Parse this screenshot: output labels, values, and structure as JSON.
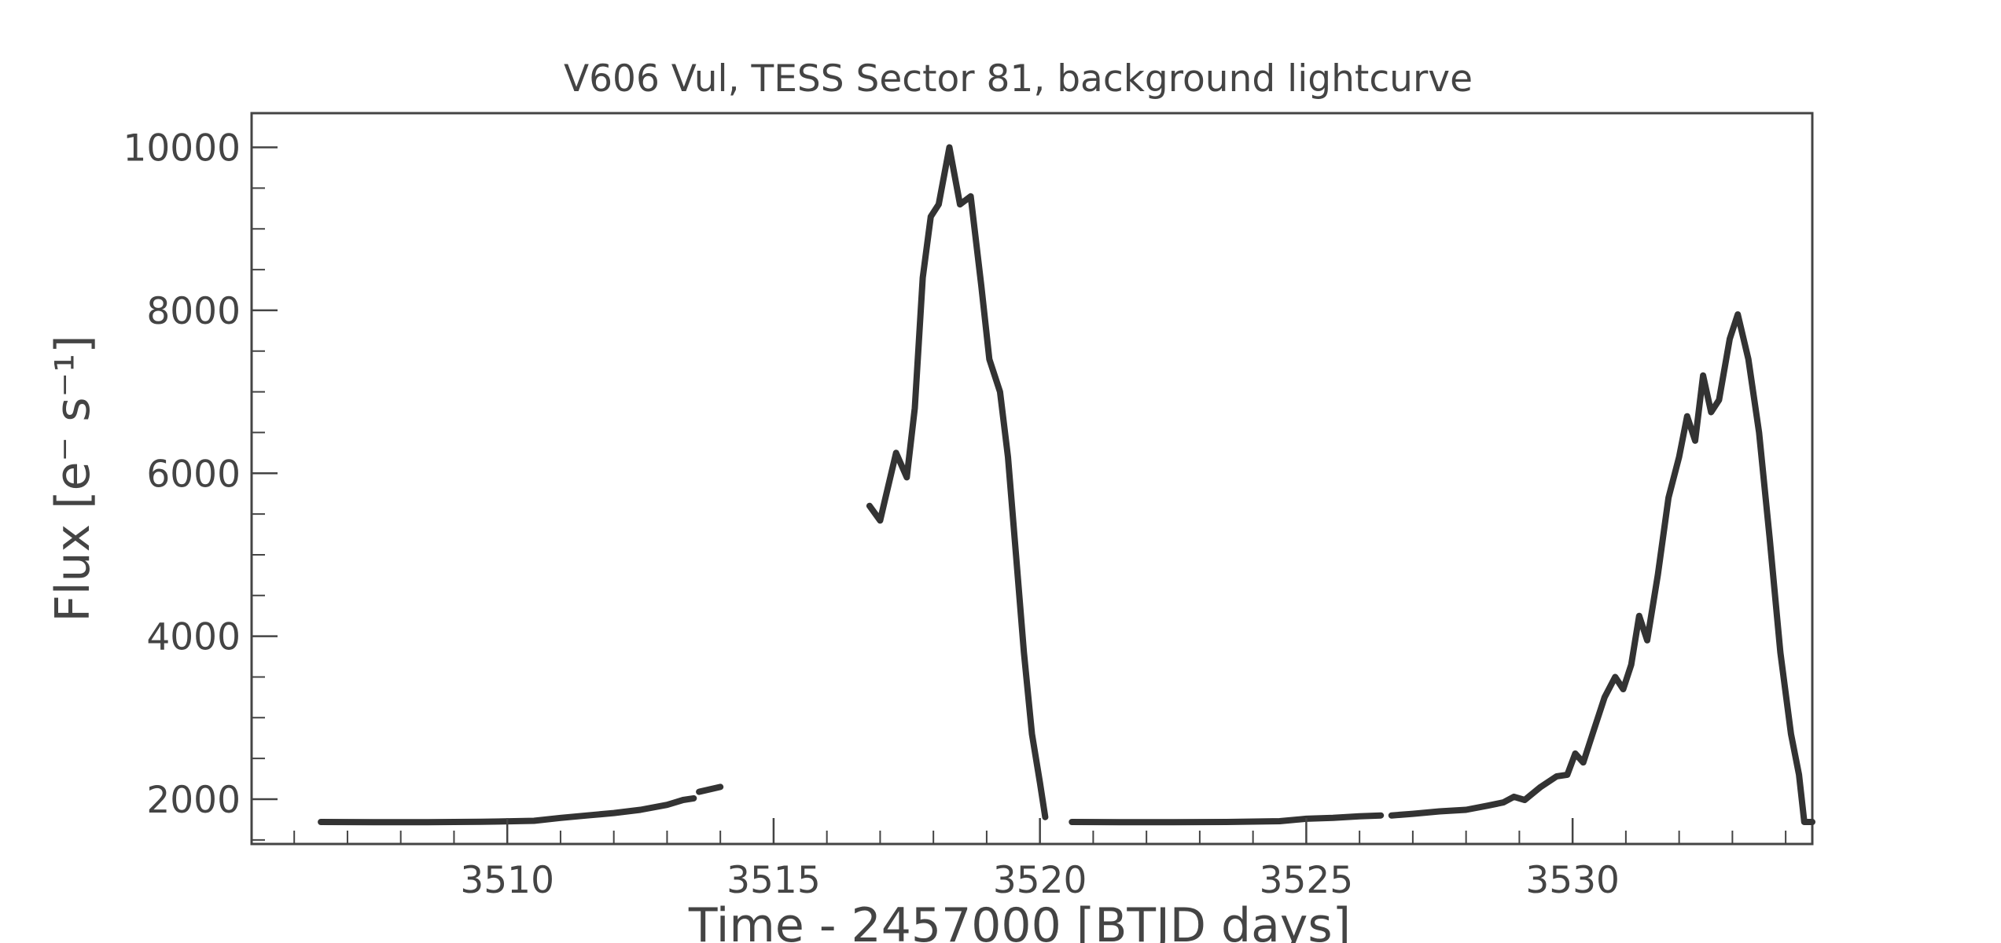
{
  "chart_data": {
    "type": "line",
    "title": "V606 Vul, TESS Sector 81, background lightcurve",
    "xlabel": "Time - 2457000 [BTJD days]",
    "ylabel": "Flux [e⁻ s⁻¹]",
    "xlim": [
      3505.2,
      3534.5
    ],
    "ylim": [
      1450,
      10420
    ],
    "xticks": [
      3510,
      3515,
      3520,
      3525,
      3530
    ],
    "xtick_labels": [
      "3510",
      "3515",
      "3520",
      "3525",
      "3530"
    ],
    "yticks": [
      2000,
      4000,
      6000,
      8000,
      10000
    ],
    "ytick_labels": [
      "2000",
      "4000",
      "6000",
      "8000",
      "10000"
    ],
    "grid": false,
    "legend": "none",
    "line_color": "#333333",
    "series": [
      {
        "segments": [
          [
            [
              3506.5,
              1720
            ],
            [
              3507.5,
              1718
            ],
            [
              3508.5,
              1718
            ],
            [
              3509.5,
              1722
            ],
            [
              3510.5,
              1735
            ],
            [
              3511.0,
              1770
            ],
            [
              3511.5,
              1800
            ],
            [
              3512.0,
              1830
            ],
            [
              3512.5,
              1870
            ],
            [
              3513.0,
              1930
            ],
            [
              3513.3,
              1990
            ],
            [
              3513.5,
              2010
            ]
          ],
          [
            [
              3513.6,
              2090
            ],
            [
              3514.0,
              2150
            ]
          ],
          [
            [
              3516.8,
              5600
            ],
            [
              3517.0,
              5420
            ],
            [
              3517.1,
              5700
            ],
            [
              3517.3,
              6250
            ],
            [
              3517.5,
              5950
            ],
            [
              3517.65,
              6800
            ],
            [
              3517.8,
              8400
            ],
            [
              3517.95,
              9150
            ],
            [
              3518.1,
              9300
            ],
            [
              3518.3,
              10000
            ],
            [
              3518.5,
              9300
            ],
            [
              3518.7,
              9400
            ],
            [
              3518.9,
              8300
            ],
            [
              3519.05,
              7400
            ],
            [
              3519.25,
              7000
            ],
            [
              3519.4,
              6200
            ],
            [
              3519.55,
              5000
            ],
            [
              3519.7,
              3800
            ],
            [
              3519.85,
              2800
            ],
            [
              3520.0,
              2200
            ],
            [
              3520.1,
              1780
            ]
          ],
          [
            [
              3520.6,
              1720
            ],
            [
              3521.5,
              1718
            ],
            [
              3522.5,
              1718
            ],
            [
              3523.5,
              1720
            ],
            [
              3524.5,
              1730
            ],
            [
              3525.0,
              1760
            ],
            [
              3525.5,
              1770
            ],
            [
              3526.0,
              1790
            ],
            [
              3526.4,
              1800
            ]
          ],
          [
            [
              3526.6,
              1800
            ],
            [
              3527.0,
              1820
            ],
            [
              3527.5,
              1850
            ],
            [
              3528.0,
              1870
            ],
            [
              3528.4,
              1920
            ],
            [
              3528.7,
              1960
            ],
            [
              3528.9,
              2030
            ],
            [
              3529.1,
              1990
            ],
            [
              3529.4,
              2150
            ],
            [
              3529.7,
              2280
            ],
            [
              3529.9,
              2300
            ],
            [
              3530.05,
              2560
            ],
            [
              3530.2,
              2450
            ],
            [
              3530.4,
              2850
            ],
            [
              3530.6,
              3250
            ],
            [
              3530.8,
              3500
            ],
            [
              3530.95,
              3350
            ],
            [
              3531.1,
              3650
            ],
            [
              3531.25,
              4250
            ],
            [
              3531.4,
              3950
            ],
            [
              3531.6,
              4750
            ],
            [
              3531.8,
              5700
            ],
            [
              3532.0,
              6200
            ],
            [
              3532.15,
              6700
            ],
            [
              3532.3,
              6400
            ],
            [
              3532.45,
              7200
            ],
            [
              3532.6,
              6750
            ],
            [
              3532.75,
              6900
            ],
            [
              3532.95,
              7650
            ],
            [
              3533.1,
              7950
            ],
            [
              3533.3,
              7400
            ],
            [
              3533.5,
              6500
            ],
            [
              3533.7,
              5200
            ],
            [
              3533.9,
              3800
            ],
            [
              3534.1,
              2800
            ],
            [
              3534.25,
              2300
            ],
            [
              3534.35,
              1720
            ],
            [
              3534.5,
              1720
            ]
          ]
        ]
      }
    ]
  }
}
